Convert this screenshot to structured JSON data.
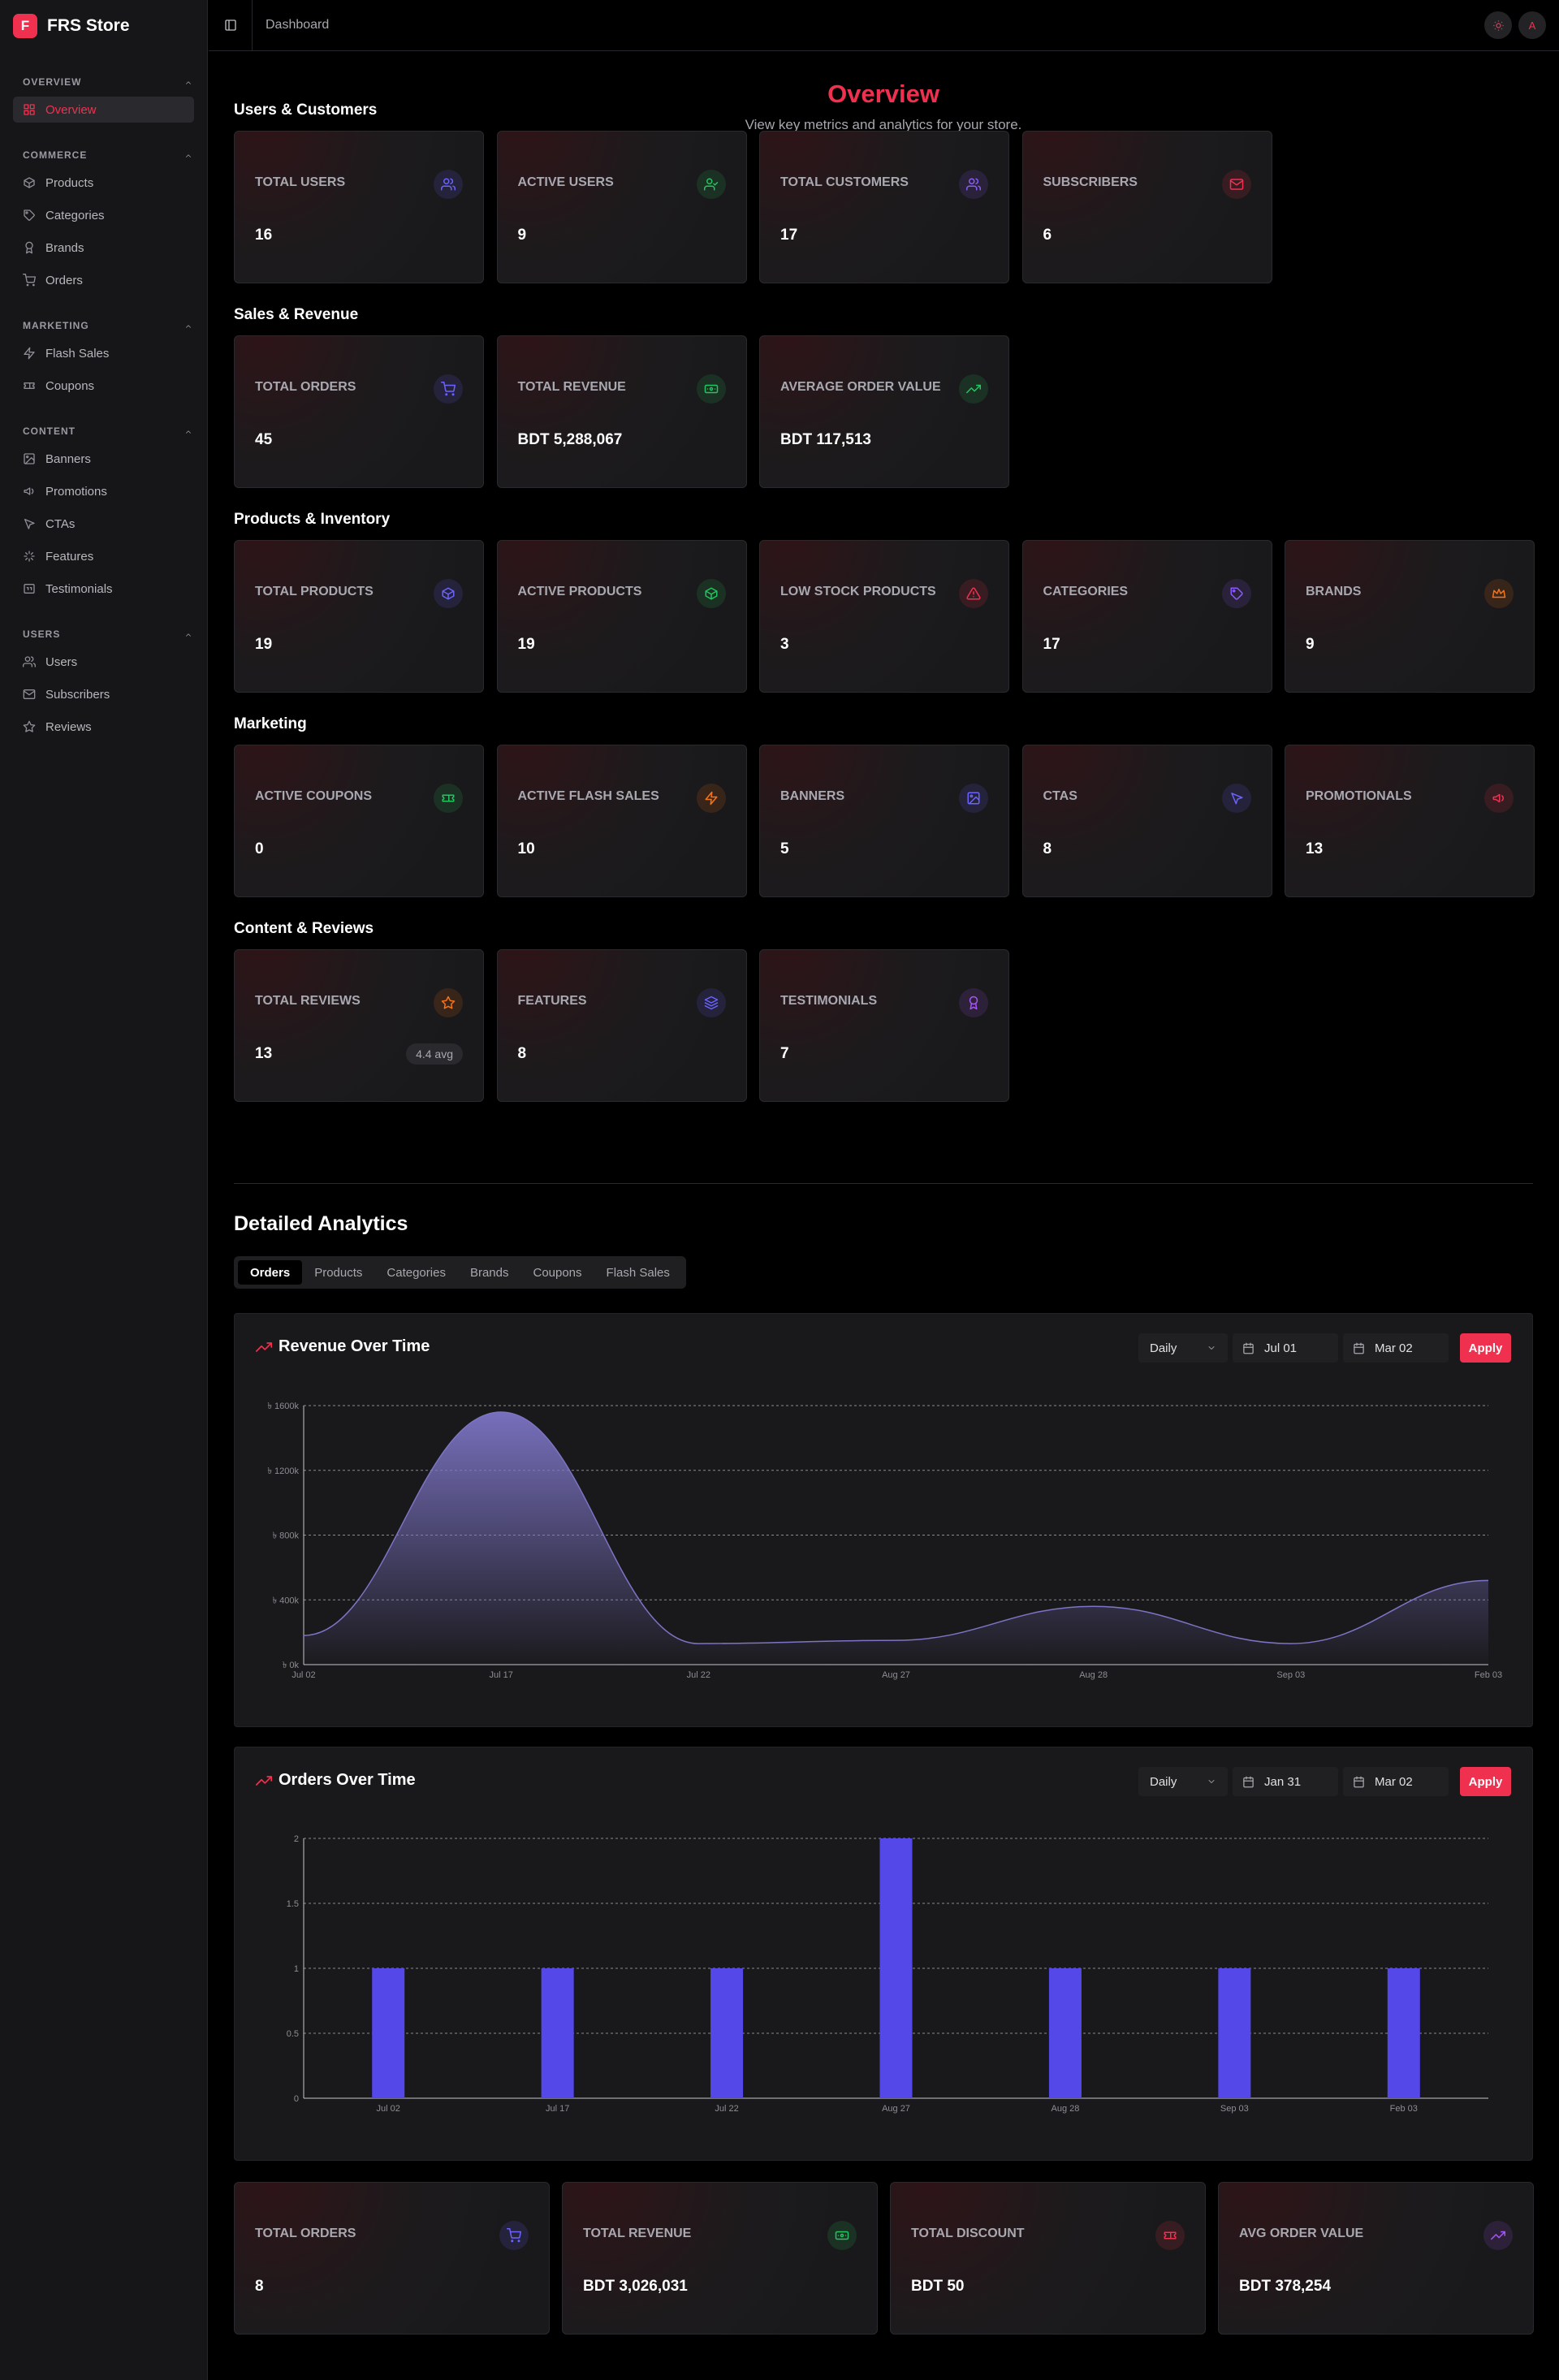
{
  "app": {
    "brand_initial": "F",
    "brand_name": "FRS Store",
    "breadcrumb": "Dashboard",
    "user_initial": "A",
    "accent": "#f0304f"
  },
  "sidebar": {
    "groups": [
      {
        "title": "OVERVIEW",
        "items": [
          {
            "label": "Overview",
            "icon": "grid-icon",
            "active": true
          }
        ]
      },
      {
        "title": "COMMERCE",
        "items": [
          {
            "label": "Products",
            "icon": "package-icon"
          },
          {
            "label": "Categories",
            "icon": "tag-icon"
          },
          {
            "label": "Brands",
            "icon": "award-icon"
          },
          {
            "label": "Orders",
            "icon": "cart-icon"
          }
        ]
      },
      {
        "title": "MARKETING",
        "items": [
          {
            "label": "Flash Sales",
            "icon": "zap-icon"
          },
          {
            "label": "Coupons",
            "icon": "ticket-icon"
          }
        ]
      },
      {
        "title": "CONTENT",
        "items": [
          {
            "label": "Banners",
            "icon": "image-icon"
          },
          {
            "label": "Promotions",
            "icon": "megaphone-icon"
          },
          {
            "label": "CTAs",
            "icon": "pointer-icon"
          },
          {
            "label": "Features",
            "icon": "sparkle-icon"
          },
          {
            "label": "Testimonials",
            "icon": "quote-icon"
          }
        ]
      },
      {
        "title": "USERS",
        "items": [
          {
            "label": "Users",
            "icon": "users-icon"
          },
          {
            "label": "Subscribers",
            "icon": "mail-icon"
          },
          {
            "label": "Reviews",
            "icon": "star-icon"
          }
        ]
      }
    ]
  },
  "overview": {
    "title": "Overview",
    "subtitle": "View key metrics and analytics for your store."
  },
  "sections": [
    {
      "title": "Users & Customers",
      "cards": [
        {
          "label": "TOTAL USERS",
          "value": "16",
          "icon": "users-icon",
          "color": "#6c63ff"
        },
        {
          "label": "ACTIVE USERS",
          "value": "9",
          "icon": "user-check-icon",
          "color": "#22c55e"
        },
        {
          "label": "TOTAL CUSTOMERS",
          "value": "17",
          "icon": "users-icon",
          "color": "#8b5cf6"
        },
        {
          "label": "SUBSCRIBERS",
          "value": "6",
          "icon": "mail-icon",
          "color": "#f0304f"
        }
      ]
    },
    {
      "title": "Sales & Revenue",
      "cards": [
        {
          "label": "TOTAL ORDERS",
          "value": "45",
          "icon": "cart-icon",
          "color": "#6c63ff"
        },
        {
          "label": "TOTAL REVENUE",
          "value": "BDT 5,288,067",
          "icon": "cash-icon",
          "color": "#22c55e"
        },
        {
          "label": "AVERAGE ORDER VALUE",
          "value": "BDT 117,513",
          "icon": "trend-icon",
          "color": "#22c55e"
        }
      ]
    },
    {
      "title": "Products & Inventory",
      "cards": [
        {
          "label": "TOTAL PRODUCTS",
          "value": "19",
          "icon": "box-icon",
          "color": "#6c63ff"
        },
        {
          "label": "ACTIVE PRODUCTS",
          "value": "19",
          "icon": "box-icon",
          "color": "#22c55e"
        },
        {
          "label": "LOW STOCK PRODUCTS",
          "value": "3",
          "icon": "alert-icon",
          "color": "#f0304f"
        },
        {
          "label": "CATEGORIES",
          "value": "17",
          "icon": "tag-icon",
          "color": "#8b5cf6"
        },
        {
          "label": "BRANDS",
          "value": "9",
          "icon": "crown-icon",
          "color": "#f97316"
        }
      ]
    },
    {
      "title": "Marketing",
      "cards": [
        {
          "label": "ACTIVE COUPONS",
          "value": "0",
          "icon": "ticket-icon",
          "color": "#22c55e"
        },
        {
          "label": "ACTIVE FLASH SALES",
          "value": "10",
          "icon": "zap-icon",
          "color": "#f97316"
        },
        {
          "label": "BANNERS",
          "value": "5",
          "icon": "image-icon",
          "color": "#6c63ff"
        },
        {
          "label": "CTAS",
          "value": "8",
          "icon": "pointer-icon",
          "color": "#6c63ff"
        },
        {
          "label": "PROMOTIONALS",
          "value": "13",
          "icon": "megaphone-icon",
          "color": "#f0304f"
        }
      ]
    },
    {
      "title": "Content & Reviews",
      "cards": [
        {
          "label": "TOTAL REVIEWS",
          "value": "13",
          "icon": "star-icon",
          "color": "#f97316",
          "badge": "4.4 avg"
        },
        {
          "label": "FEATURES",
          "value": "8",
          "icon": "layers-icon",
          "color": "#6c63ff"
        },
        {
          "label": "TESTIMONIALS",
          "value": "7",
          "icon": "award-icon",
          "color": "#a855f7"
        }
      ]
    }
  ],
  "analytics": {
    "title": "Detailed Analytics",
    "tabs": [
      "Orders",
      "Products",
      "Categories",
      "Brands",
      "Coupons",
      "Flash Sales"
    ],
    "active_tab": "Orders",
    "apply_label": "Apply"
  },
  "chart_data": [
    {
      "type": "area",
      "title": "Revenue Over Time",
      "granularity": "Daily",
      "date_from": "Jul 01",
      "date_to": "Mar 02",
      "x": [
        "Jul 02",
        "Jul 17",
        "Jul 22",
        "Aug 27",
        "Aug 28",
        "Sep 03",
        "Feb 03"
      ],
      "y_tick_labels": [
        "৳ 0k",
        "৳ 400k",
        "৳ 800k",
        "৳ 1200k",
        "৳ 1600k"
      ],
      "ylim": [
        0,
        1600000
      ],
      "values": [
        180000,
        1560000,
        130000,
        150000,
        360000,
        130000,
        520000
      ],
      "color": "#7c74c4",
      "grid": true
    },
    {
      "type": "bar",
      "title": "Orders Over Time",
      "granularity": "Daily",
      "date_from": "Jan 31",
      "date_to": "Mar 02",
      "categories": [
        "Jul 02",
        "Jul 17",
        "Jul 22",
        "Aug 27",
        "Aug 28",
        "Sep 03",
        "Feb 03"
      ],
      "values": [
        1,
        1,
        1,
        2,
        1,
        1,
        1
      ],
      "y_tick_labels": [
        "0",
        "0.5",
        "1",
        "1.5",
        "2"
      ],
      "ylim": [
        0,
        2
      ],
      "color": "#5548e8",
      "grid": true
    }
  ],
  "summary_cards": [
    {
      "label": "TOTAL ORDERS",
      "value": "8",
      "icon": "cart-icon",
      "color": "#6c63ff"
    },
    {
      "label": "TOTAL REVENUE",
      "value": "BDT 3,026,031",
      "icon": "cash-icon",
      "color": "#22c55e"
    },
    {
      "label": "TOTAL DISCOUNT",
      "value": "BDT 50",
      "icon": "ticket-icon",
      "color": "#f0304f"
    },
    {
      "label": "AVG ORDER VALUE",
      "value": "BDT 378,254",
      "icon": "trend-icon",
      "color": "#a855f7"
    }
  ]
}
